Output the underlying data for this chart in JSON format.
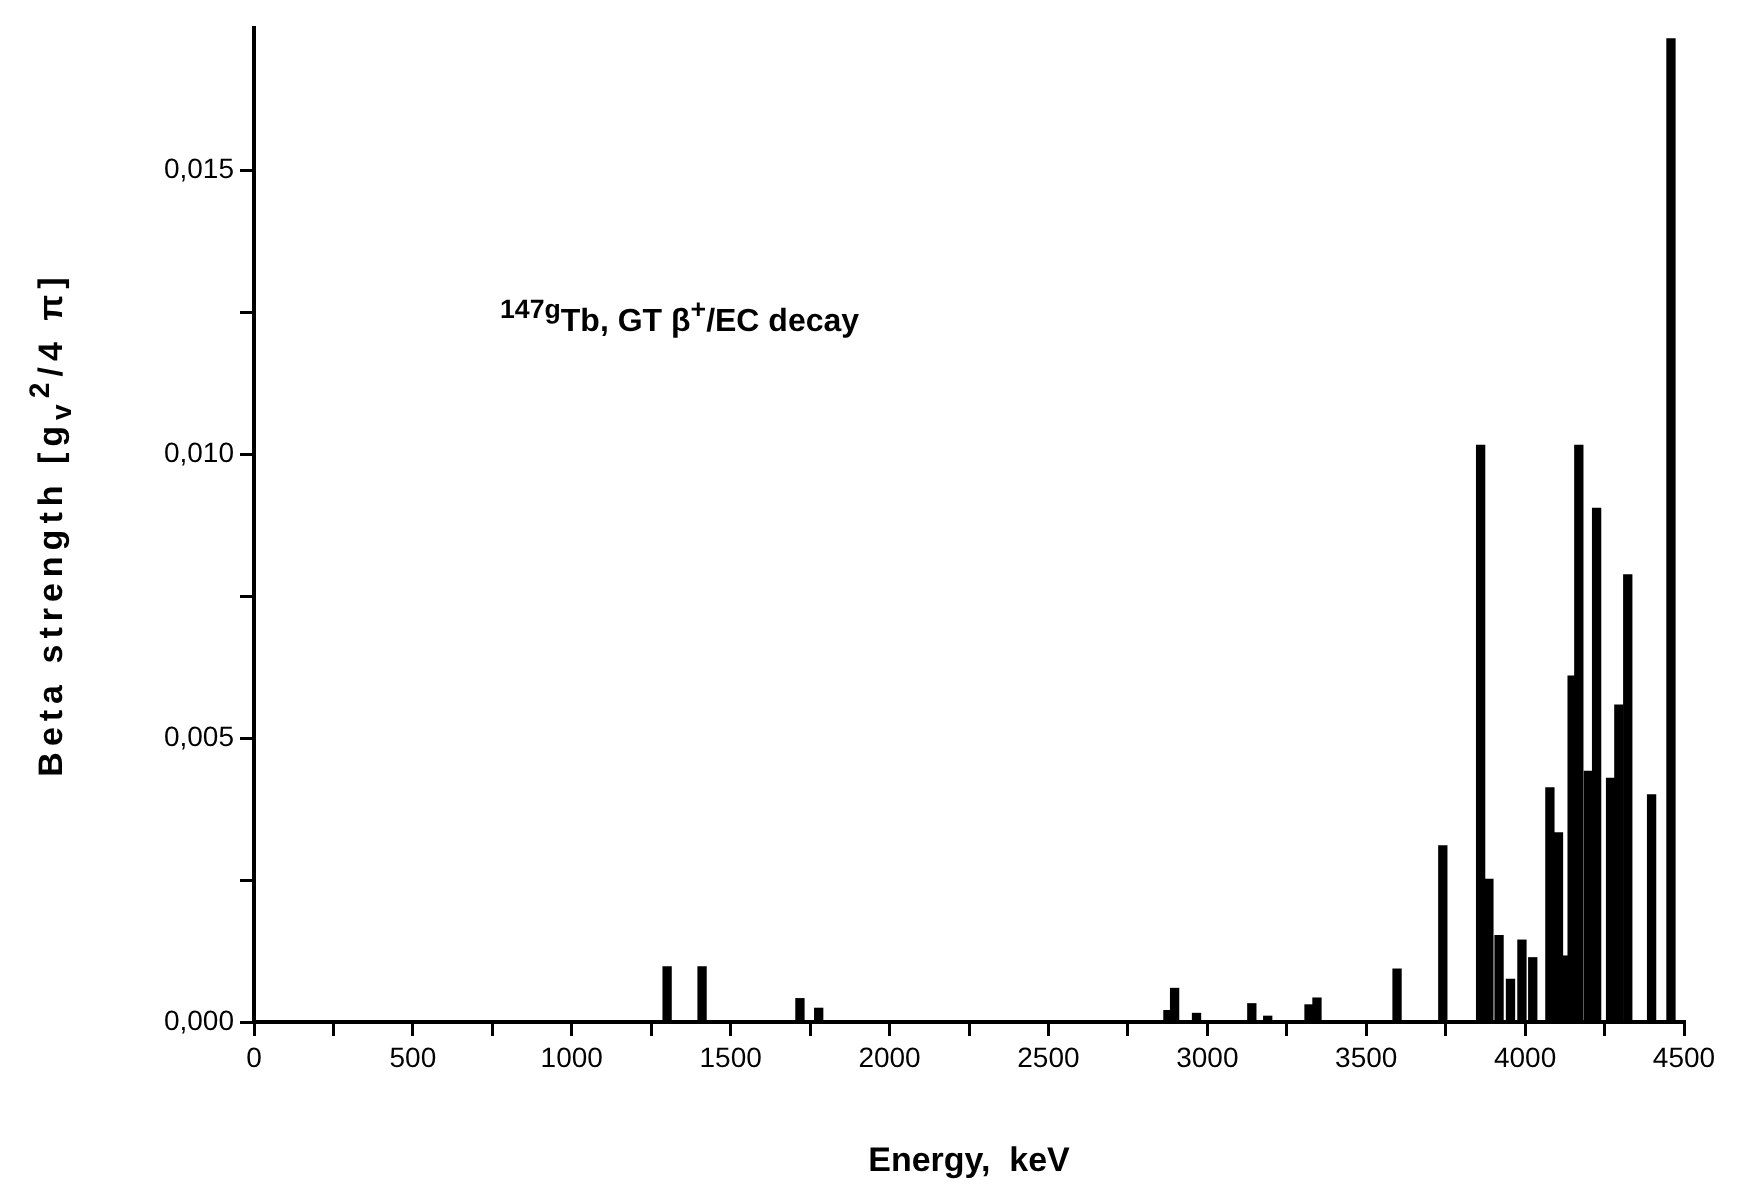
{
  "chart_data": {
    "type": "bar",
    "xlabel": "Energy,  keV",
    "ylabel": "Beta strength  [g$_{v}$$^{2}$/4 π]",
    "annotations": [
      "$^{147g}$Tb,  GT  β$^{+}$/EC decay"
    ],
    "x": [
      1300,
      1410,
      1718,
      1777,
      2876,
      2897,
      2966,
      3140,
      3190,
      3320,
      3345,
      3597,
      3741,
      3860,
      3886,
      3918,
      3954,
      3990,
      4024,
      4078,
      4105,
      4133,
      4148,
      4169,
      4199,
      4225,
      4269,
      4295,
      4323,
      4398,
      4459
    ],
    "values": [
      0.00097,
      0.00097,
      0.00041,
      0.00024,
      0.0002,
      0.00059,
      0.00015,
      0.00032,
      0.0001,
      0.0003,
      0.00042,
      0.00093,
      0.0031,
      0.01015,
      0.00251,
      0.00152,
      0.00075,
      0.00144,
      0.00113,
      0.00412,
      0.00333,
      0.00116,
      0.00609,
      0.01015,
      0.00441,
      0.00904,
      0.00429,
      0.00558,
      0.00787,
      0.004,
      0.01731
    ],
    "color": "#000000",
    "xlim": [
      0,
      4500
    ],
    "xticks": [
      0,
      {
        "value": 250,
        "label": null
      },
      500,
      {
        "value": 750,
        "label": null
      },
      1000,
      {
        "value": 1250,
        "label": null
      },
      1500,
      {
        "value": 1750,
        "label": null
      },
      2000,
      {
        "value": 2250,
        "label": null
      },
      2500,
      {
        "value": 2750,
        "label": null
      },
      3000,
      {
        "value": 3250,
        "label": null
      },
      3500,
      {
        "value": 3750,
        "label": null
      },
      4000,
      {
        "value": 4250,
        "label": null
      },
      4500
    ],
    "ylim": [
      0,
      0.0175
    ],
    "yticks": [
      {
        "value": 0,
        "label": "0,000"
      },
      {
        "value": 0.0025,
        "label": null
      },
      {
        "value": 0.005,
        "label": "0,005"
      },
      {
        "value": 0.0075,
        "label": null
      },
      {
        "value": 0.01,
        "label": "0,010"
      },
      {
        "value": 0.0125,
        "label": null
      },
      {
        "value": 0.015,
        "label": "0,015"
      }
    ]
  }
}
